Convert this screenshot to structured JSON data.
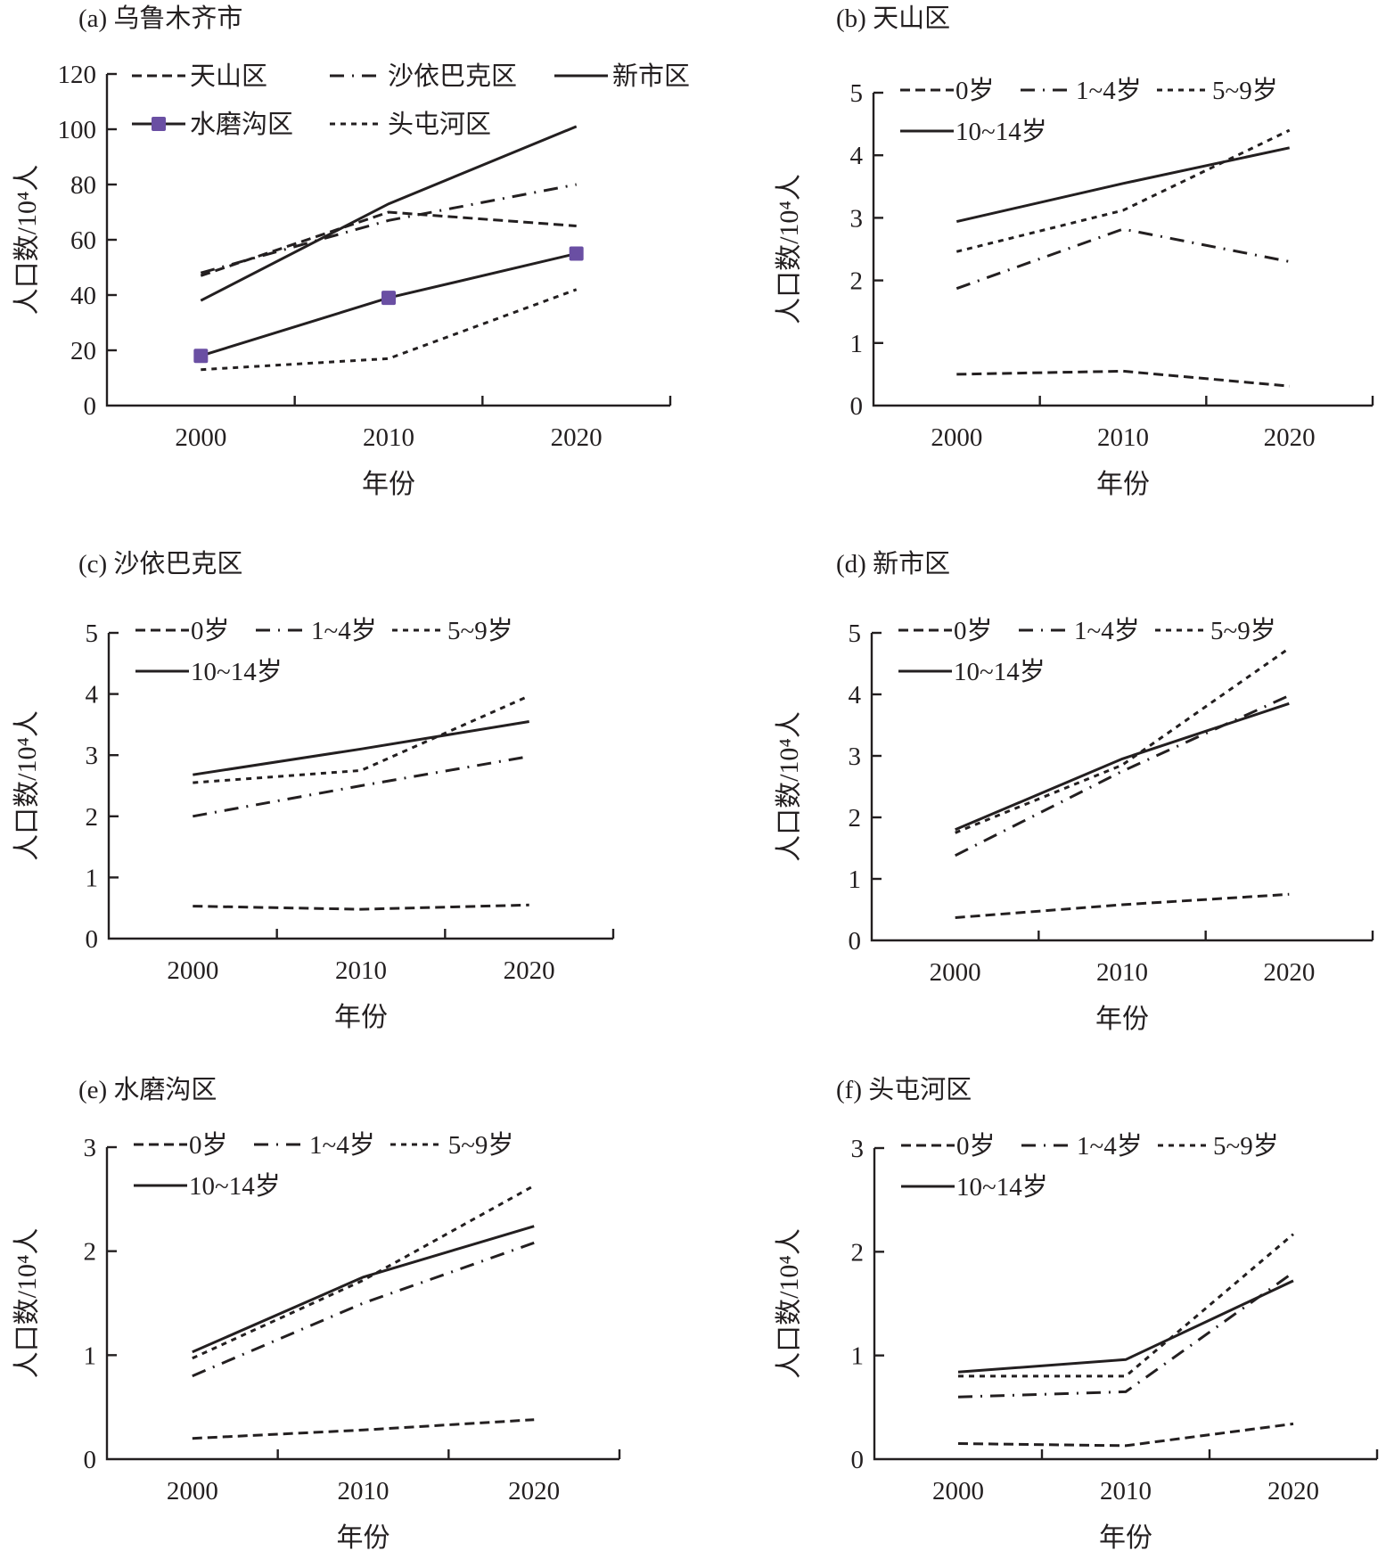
{
  "figure": {
    "marker_color": "#6a4fa3",
    "line_color": "#231f20"
  },
  "chart_data": [
    {
      "id": "a",
      "type": "line",
      "title": "(a) 乌鲁木齐市",
      "xlabel": "年份",
      "ylabel": "人口数/10⁴人",
      "categories": [
        "2000",
        "2010",
        "2020"
      ],
      "ylim": [
        0,
        120
      ],
      "yticks": [
        0,
        20,
        40,
        60,
        80,
        100,
        120
      ],
      "grid": false,
      "legend_position": "top",
      "series": [
        {
          "name": "天山区",
          "style": "dash",
          "values": [
            47,
            70,
            65
          ]
        },
        {
          "name": "沙依巴克区",
          "style": "dashdot",
          "values": [
            48,
            67,
            80
          ]
        },
        {
          "name": "新市区",
          "style": "solid",
          "values": [
            38,
            73,
            101
          ]
        },
        {
          "name": "水磨沟区",
          "style": "solid-square",
          "values": [
            18,
            39,
            55
          ]
        },
        {
          "name": "头屯河区",
          "style": "dot",
          "values": [
            13,
            17,
            42
          ]
        }
      ]
    },
    {
      "id": "b",
      "type": "line",
      "title": "(b) 天山区",
      "xlabel": "年份",
      "ylabel": "人口数/10⁴人",
      "categories": [
        "2000",
        "2010",
        "2020"
      ],
      "ylim": [
        0,
        5
      ],
      "yticks": [
        0,
        1,
        2,
        3,
        4,
        5
      ],
      "grid": false,
      "legend_position": "top",
      "series": [
        {
          "name": "0岁",
          "style": "dash",
          "values": [
            0.5,
            0.55,
            0.31
          ]
        },
        {
          "name": "1~4岁",
          "style": "dashdot",
          "values": [
            1.87,
            2.82,
            2.3
          ]
        },
        {
          "name": "5~9岁",
          "style": "dot",
          "values": [
            2.46,
            3.12,
            4.4
          ]
        },
        {
          "name": "10~14岁",
          "style": "solid",
          "values": [
            2.94,
            3.55,
            4.12
          ]
        }
      ]
    },
    {
      "id": "c",
      "type": "line",
      "title": "(c) 沙依巴克区",
      "xlabel": "年份",
      "ylabel": "人口数/10⁴人",
      "categories": [
        "2000",
        "2010",
        "2020"
      ],
      "ylim": [
        0,
        5
      ],
      "yticks": [
        0,
        1,
        2,
        3,
        4,
        5
      ],
      "grid": false,
      "legend_position": "top",
      "series": [
        {
          "name": "0岁",
          "style": "dash",
          "values": [
            0.53,
            0.48,
            0.55
          ]
        },
        {
          "name": "1~4岁",
          "style": "dashdot",
          "values": [
            2.0,
            2.5,
            2.98
          ]
        },
        {
          "name": "5~9岁",
          "style": "dot",
          "values": [
            2.55,
            2.75,
            3.97
          ]
        },
        {
          "name": "10~14岁",
          "style": "solid",
          "values": [
            2.68,
            3.1,
            3.55
          ]
        }
      ]
    },
    {
      "id": "d",
      "type": "line",
      "title": "(d) 新市区",
      "xlabel": "年份",
      "ylabel": "人口数/10⁴人",
      "categories": [
        "2000",
        "2010",
        "2020"
      ],
      "ylim": [
        0,
        5
      ],
      "yticks": [
        0,
        1,
        2,
        3,
        4,
        5
      ],
      "grid": false,
      "legend_position": "top",
      "series": [
        {
          "name": "0岁",
          "style": "dash",
          "values": [
            0.37,
            0.58,
            0.75
          ]
        },
        {
          "name": "1~4岁",
          "style": "dashdot",
          "values": [
            1.38,
            2.75,
            3.98
          ]
        },
        {
          "name": "5~9岁",
          "style": "dot",
          "values": [
            1.75,
            2.85,
            4.75
          ]
        },
        {
          "name": "10~14岁",
          "style": "solid",
          "values": [
            1.8,
            2.95,
            3.85
          ]
        }
      ]
    },
    {
      "id": "e",
      "type": "line",
      "title": "(e) 水磨沟区",
      "xlabel": "年份",
      "ylabel": "人口数/10⁴人",
      "categories": [
        "2000",
        "2010",
        "2020"
      ],
      "ylim": [
        0,
        3
      ],
      "yticks": [
        0,
        1,
        2,
        3
      ],
      "grid": false,
      "legend_position": "top",
      "series": [
        {
          "name": "0岁",
          "style": "dash",
          "values": [
            0.2,
            0.28,
            0.38
          ]
        },
        {
          "name": "1~4岁",
          "style": "dashdot",
          "values": [
            0.8,
            1.5,
            2.08
          ]
        },
        {
          "name": "5~9岁",
          "style": "dot",
          "values": [
            0.97,
            1.72,
            2.63
          ]
        },
        {
          "name": "10~14岁",
          "style": "solid",
          "values": [
            1.03,
            1.75,
            2.24
          ]
        }
      ]
    },
    {
      "id": "f",
      "type": "line",
      "title": "(f) 头屯河区",
      "xlabel": "年份",
      "ylabel": "人口数/10⁴人",
      "categories": [
        "2000",
        "2010",
        "2020"
      ],
      "ylim": [
        0,
        3
      ],
      "yticks": [
        0,
        1,
        2,
        3
      ],
      "grid": false,
      "legend_position": "top",
      "series": [
        {
          "name": "0岁",
          "style": "dash",
          "values": [
            0.15,
            0.13,
            0.34
          ]
        },
        {
          "name": "1~4岁",
          "style": "dashdot",
          "values": [
            0.6,
            0.65,
            1.8
          ]
        },
        {
          "name": "5~9岁",
          "style": "dot",
          "values": [
            0.8,
            0.8,
            2.17
          ]
        },
        {
          "name": "10~14岁",
          "style": "solid",
          "values": [
            0.84,
            0.96,
            1.72
          ]
        }
      ]
    }
  ]
}
